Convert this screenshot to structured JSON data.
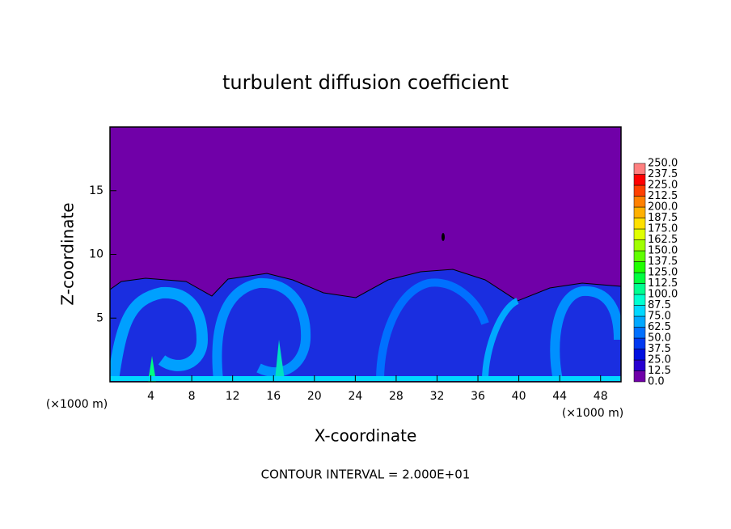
{
  "chart_data": {
    "type": "contour",
    "title": "turbulent diffusion coefficient",
    "x_label": "X-coordinate",
    "y_label": "Z-coordinate",
    "x_unit_left": "(×1000 m)",
    "x_unit_right": "(×1000 m)",
    "footer": "CONTOUR INTERVAL = 2.000E+01",
    "xlim": [
      0,
      50
    ],
    "xticks": [
      4,
      8,
      12,
      16,
      20,
      24,
      28,
      32,
      36,
      40,
      44,
      48
    ],
    "ylim": [
      0,
      20
    ],
    "yticks": [
      5,
      10,
      15
    ],
    "colorbar": {
      "levels": [
        {
          "value": 0,
          "label": "0.0"
        },
        {
          "value": 12.5,
          "label": "12.5"
        },
        {
          "value": 25,
          "label": "25.0"
        },
        {
          "value": 37.5,
          "label": "37.5"
        },
        {
          "value": 50,
          "label": "50.0"
        },
        {
          "value": 62.5,
          "label": "62.5"
        },
        {
          "value": 75,
          "label": "75.0"
        },
        {
          "value": 87.5,
          "label": "87.5"
        },
        {
          "value": 100,
          "label": "100.0"
        },
        {
          "value": 112.5,
          "label": "112.5"
        },
        {
          "value": 125,
          "label": "125.0"
        },
        {
          "value": 137.5,
          "label": "137.5"
        },
        {
          "value": 150,
          "label": "150.0"
        },
        {
          "value": 162.5,
          "label": "162.5"
        },
        {
          "value": 175,
          "label": "175.0"
        },
        {
          "value": 187.5,
          "label": "187.5"
        },
        {
          "value": 200,
          "label": "200.0"
        },
        {
          "value": 212.5,
          "label": "212.5"
        },
        {
          "value": 225,
          "label": "225.0"
        },
        {
          "value": 237.5,
          "label": "237.5"
        },
        {
          "value": 250,
          "label": "250.0"
        }
      ],
      "colors": [
        "#7000a8",
        "#2800d0",
        "#0010e0",
        "#0038f0",
        "#0070ff",
        "#00a8ff",
        "#00d8ff",
        "#00ffd0",
        "#00ff90",
        "#00ff40",
        "#20ff00",
        "#60ff00",
        "#a0ff00",
        "#e0ff00",
        "#ffe000",
        "#ffb000",
        "#ff8000",
        "#ff4000",
        "#ff0000",
        "#ff8080"
      ]
    }
  }
}
